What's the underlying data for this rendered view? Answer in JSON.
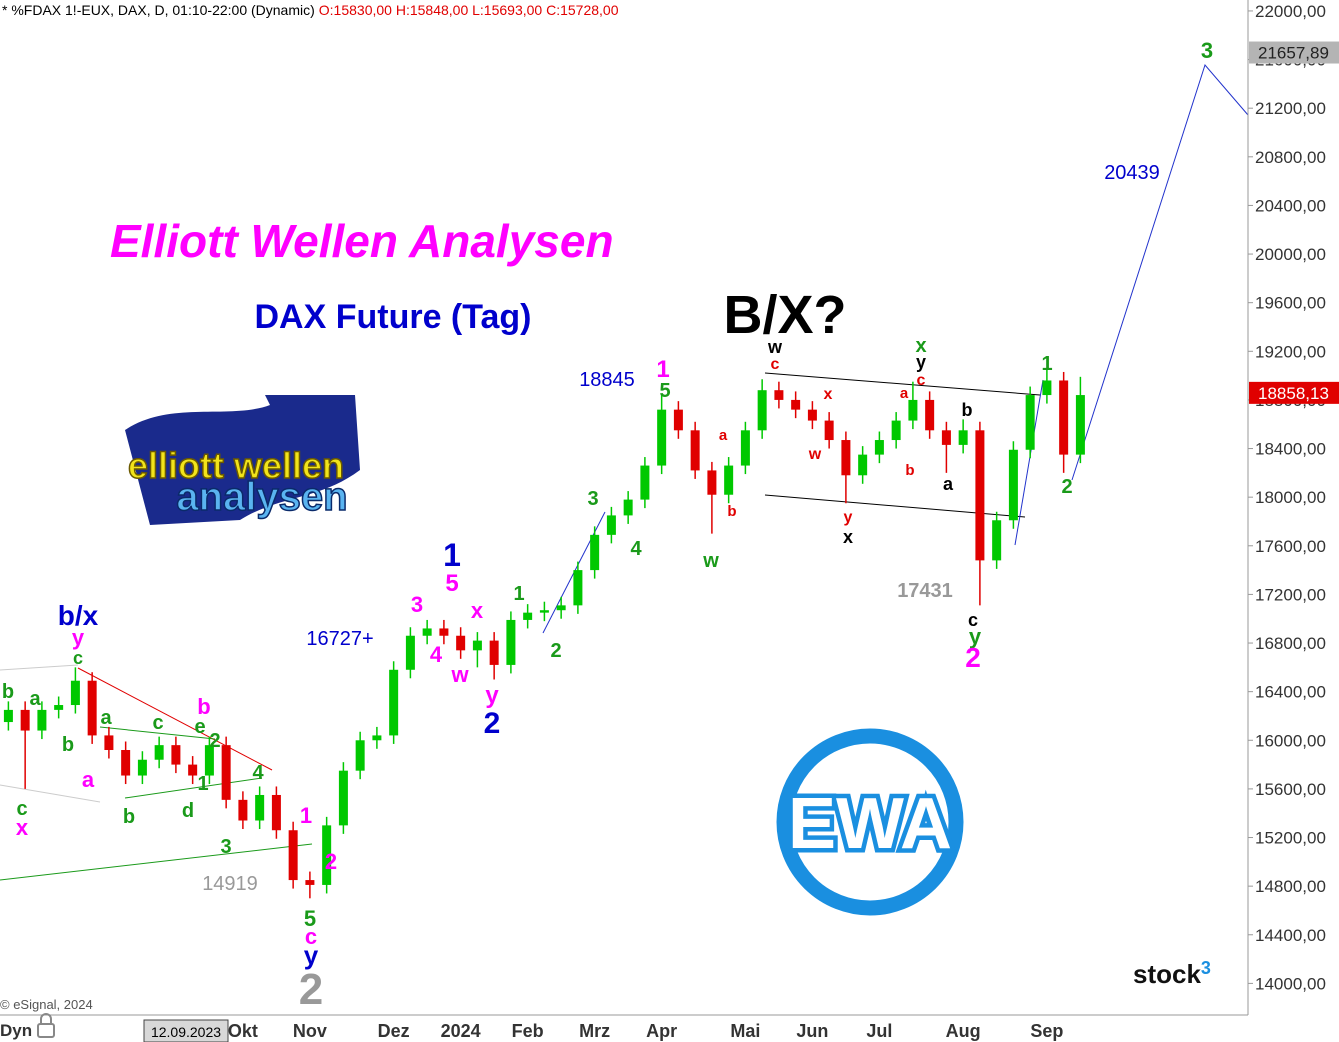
{
  "chart_data": {
    "type": "candlestick",
    "header_symbol": "* %FDAX 1!-EUX, DAX, D, 01:10-22:00 (Dynamic)",
    "header_ohlc": "O:15830,00 H:15848,00 L:15693,00 C:15728,00",
    "title": "Elliott Wellen Analysen",
    "subtitle": "DAX Future (Tag)",
    "logo": [
      "elliott wellen",
      "analysen"
    ],
    "badge": "EWA",
    "watermark": [
      "stock",
      "3"
    ],
    "copyright": "© eSignal, 2024",
    "footer_left": "Dyn",
    "cursor_date": "12.09.2023",
    "up_color": "#00c800",
    "down_color": "#e00000",
    "categories": [
      null,
      null,
      null,
      null,
      null,
      null,
      null,
      null,
      null,
      null,
      null,
      null,
      null,
      null,
      "Okt",
      null,
      null,
      null,
      "Nov",
      null,
      null,
      null,
      null,
      "Dez",
      null,
      null,
      null,
      "2024",
      null,
      null,
      null,
      "Feb",
      null,
      null,
      null,
      "Mrz",
      null,
      null,
      null,
      "Apr",
      null,
      null,
      null,
      null,
      "Mai",
      null,
      null,
      null,
      "Jun",
      null,
      null,
      null,
      "Jul",
      null,
      null,
      null,
      null,
      "Aug",
      null,
      null,
      null,
      null,
      "Sep",
      null,
      null
    ],
    "open": [
      16150,
      16250,
      16080,
      16250,
      16290,
      16490,
      16040,
      15920,
      15710,
      15840,
      15960,
      15800,
      15710,
      15960,
      15510,
      15340,
      15550,
      15260,
      14850,
      14810,
      15300,
      15750,
      16000,
      16040,
      16580,
      16860,
      16920,
      16860,
      16740,
      16820,
      16620,
      16990,
      17050,
      17070,
      17110,
      17400,
      17690,
      17850,
      17980,
      18260,
      18720,
      18550,
      18220,
      18020,
      18260,
      18550,
      18880,
      18800,
      18720,
      18630,
      18470,
      18180,
      18350,
      18470,
      18630,
      18800,
      18550,
      18430,
      18550,
      17480,
      17810,
      18390,
      18840,
      18960,
      18350
    ],
    "high": [
      16320,
      16320,
      16320,
      16360,
      16600,
      16560,
      16110,
      15990,
      15910,
      16030,
      16030,
      15870,
      16030,
      16030,
      15580,
      15620,
      15620,
      15330,
      14920,
      15370,
      15820,
      16070,
      16110,
      16650,
      16930,
      16990,
      16990,
      16930,
      16890,
      16890,
      17060,
      17120,
      17140,
      17180,
      17470,
      17760,
      17920,
      18050,
      18330,
      18845,
      18790,
      18620,
      18290,
      18330,
      18620,
      18970,
      18950,
      18870,
      18790,
      18700,
      18540,
      18420,
      18540,
      18700,
      18950,
      18870,
      18620,
      18640,
      18620,
      17880,
      18460,
      18910,
      19050,
      19030,
      18990
    ],
    "low": [
      16080,
      15600,
      16010,
      16180,
      16220,
      15970,
      15850,
      15640,
      15640,
      15770,
      15730,
      15640,
      15640,
      15440,
      15270,
      15270,
      15190,
      14780,
      14700,
      14740,
      15230,
      15680,
      15930,
      15970,
      16510,
      16790,
      16790,
      16670,
      16600,
      16500,
      16550,
      16920,
      16980,
      17000,
      17040,
      17330,
      17620,
      17780,
      17910,
      18190,
      18480,
      18150,
      17700,
      17950,
      18190,
      18480,
      18730,
      18650,
      18560,
      18400,
      17950,
      18110,
      18280,
      18400,
      18560,
      18480,
      18200,
      18360,
      17110,
      17410,
      17740,
      18320,
      18770,
      18200,
      18280
    ],
    "close": [
      16250,
      16080,
      16250,
      16290,
      16490,
      16040,
      15920,
      15710,
      15840,
      15960,
      15800,
      15710,
      15960,
      15510,
      15340,
      15550,
      15260,
      14850,
      14810,
      15300,
      15750,
      16000,
      16040,
      16580,
      16860,
      16920,
      16860,
      16740,
      16820,
      16620,
      16990,
      17050,
      17070,
      17110,
      17400,
      17690,
      17850,
      17980,
      18260,
      18720,
      18550,
      18220,
      18020,
      18260,
      18550,
      18880,
      18800,
      18720,
      18630,
      18470,
      18180,
      18350,
      18470,
      18630,
      18800,
      18550,
      18430,
      18550,
      17480,
      17810,
      18390,
      18840,
      18960,
      18350,
      18840
    ],
    "ylim": [
      13740,
      22090
    ],
    "yticks": [
      {
        "value": 14000,
        "label": "14000,00"
      },
      {
        "value": 14400,
        "label": "14400,00"
      },
      {
        "value": 14800,
        "label": "14800,00"
      },
      {
        "value": 15200,
        "label": "15200,00"
      },
      {
        "value": 15600,
        "label": "15600,00"
      },
      {
        "value": 16000,
        "label": "16000,00"
      },
      {
        "value": 16400,
        "label": "16400,00"
      },
      {
        "value": 16800,
        "label": "16800,00"
      },
      {
        "value": 17200,
        "label": "17200,00"
      },
      {
        "value": 17600,
        "label": "17600,00"
      },
      {
        "value": 18000,
        "label": "18000,00"
      },
      {
        "value": 18400,
        "label": "18400,00"
      },
      {
        "value": 18800,
        "label": "18800,00"
      },
      {
        "value": 19200,
        "label": "19200,00"
      },
      {
        "value": 19600,
        "label": "19600,00"
      },
      {
        "value": 20000,
        "label": "20000,00"
      },
      {
        "value": 20400,
        "label": "20400,00"
      },
      {
        "value": 20800,
        "label": "20800,00"
      },
      {
        "value": 21200,
        "label": "21200,00"
      },
      {
        "value": 21600,
        "label": "21600,00"
      },
      {
        "value": 22000,
        "label": "22000,00"
      }
    ],
    "price_tags": [
      {
        "value": 21657.89,
        "label": "21657,89",
        "color": "#b4b4b4"
      },
      {
        "value": 18858.13,
        "label": "18858,13",
        "color": "#e00000"
      }
    ],
    "annotations": [
      {
        "text": "b/x",
        "color": "#0000cc"
      },
      {
        "text": "y",
        "color": "#ff00ff"
      },
      {
        "text": "c",
        "color": "#1a9a1a"
      },
      {
        "text": "b",
        "color": "#1a9a1a"
      },
      {
        "text": "a",
        "color": "#1a9a1a"
      },
      {
        "text": "b",
        "color": "#1a9a1a"
      },
      {
        "text": "a",
        "color": "#ff00ff"
      },
      {
        "text": "c",
        "color": "#1a9a1a"
      },
      {
        "text": "x",
        "color": "#ff00ff"
      },
      {
        "text": "a",
        "color": "#1a9a1a"
      },
      {
        "text": "c",
        "color": "#1a9a1a"
      },
      {
        "text": "b",
        "color": "#ff00ff"
      },
      {
        "text": "e",
        "color": "#1a9a1a"
      },
      {
        "text": "2",
        "color": "#1a9a1a"
      },
      {
        "text": "b",
        "color": "#1a9a1a"
      },
      {
        "text": "d",
        "color": "#1a9a1a"
      },
      {
        "text": "1",
        "color": "#1a9a1a"
      },
      {
        "text": "4",
        "color": "#1a9a1a"
      },
      {
        "text": "3",
        "color": "#1a9a1a"
      },
      {
        "text": "14919",
        "color": "#999999"
      },
      {
        "text": "1",
        "color": "#ff00ff"
      },
      {
        "text": "2",
        "color": "#ff00ff"
      },
      {
        "text": "5",
        "color": "#1a9a1a"
      },
      {
        "text": "c",
        "color": "#ff00ff"
      },
      {
        "text": "y",
        "color": "#0000cc"
      },
      {
        "text": "2",
        "color": "#999999"
      },
      {
        "text": "16727+",
        "color": "#0000cc"
      },
      {
        "text": "3",
        "color": "#ff00ff"
      },
      {
        "text": "1",
        "color": "#0000cc"
      },
      {
        "text": "5",
        "color": "#ff00ff"
      },
      {
        "text": "x",
        "color": "#ff00ff"
      },
      {
        "text": "4",
        "color": "#ff00ff"
      },
      {
        "text": "w",
        "color": "#ff00ff"
      },
      {
        "text": "y",
        "color": "#ff00ff"
      },
      {
        "text": "2",
        "color": "#0000cc"
      },
      {
        "text": "1",
        "color": "#1a9a1a"
      },
      {
        "text": "2",
        "color": "#1a9a1a"
      },
      {
        "text": "3",
        "color": "#1a9a1a"
      },
      {
        "text": "4",
        "color": "#1a9a1a"
      },
      {
        "text": "18845",
        "color": "#0000cc"
      },
      {
        "text": "1",
        "color": "#ff00ff"
      },
      {
        "text": "5",
        "color": "#1a9a1a"
      },
      {
        "text": "w",
        "color": "#1a9a1a"
      },
      {
        "text": "a",
        "color": "#e00000"
      },
      {
        "text": "b",
        "color": "#e00000"
      },
      {
        "text": "B/X?",
        "color": "#000000"
      },
      {
        "text": "w",
        "color": "#000000"
      },
      {
        "text": "c",
        "color": "#e00000"
      },
      {
        "text": "x",
        "color": "#e00000"
      },
      {
        "text": "w",
        "color": "#e00000"
      },
      {
        "text": "y",
        "color": "#e00000"
      },
      {
        "text": "x",
        "color": "#000000"
      },
      {
        "text": "x",
        "color": "#1a9a1a"
      },
      {
        "text": "y",
        "color": "#000000"
      },
      {
        "text": "c",
        "color": "#e00000"
      },
      {
        "text": "a",
        "color": "#e00000"
      },
      {
        "text": "b",
        "color": "#e00000"
      },
      {
        "text": "b",
        "color": "#000000"
      },
      {
        "text": "a",
        "color": "#000000"
      },
      {
        "text": "17431",
        "color": "#999999"
      },
      {
        "text": "c",
        "color": "#000000"
      },
      {
        "text": "y",
        "color": "#1a9a1a"
      },
      {
        "text": "2",
        "color": "#ff00ff"
      },
      {
        "text": "1",
        "color": "#1a9a1a"
      },
      {
        "text": "2",
        "color": "#1a9a1a"
      },
      {
        "text": "20439",
        "color": "#0000cc"
      },
      {
        "text": "3",
        "color": "#1a9a1a"
      }
    ]
  }
}
